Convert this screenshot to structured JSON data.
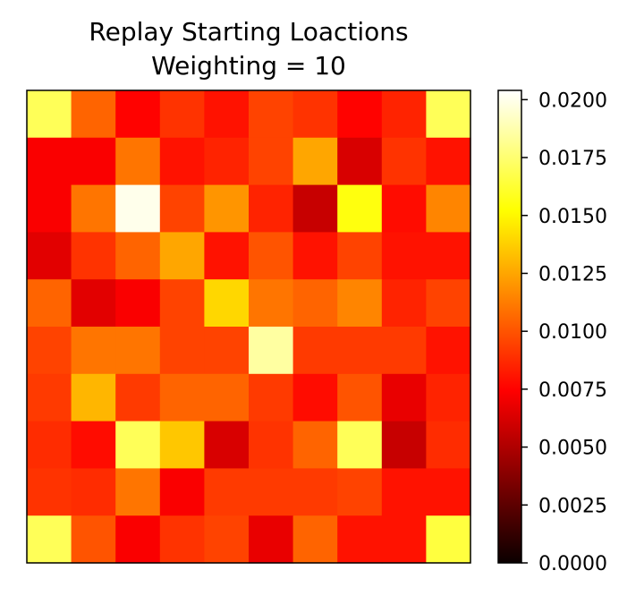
{
  "chart_data": {
    "type": "heatmap",
    "title": "Replay Starting Loactions\nWeighting = 10",
    "title_lines": [
      "Replay Starting Loactions",
      "Weighting = 10"
    ],
    "xlabel": "",
    "ylabel": "",
    "x_ticks_shown": false,
    "y_ticks_shown": false,
    "rows": 10,
    "cols": 10,
    "colormap": "hot",
    "vmin": 0.0,
    "vmax": 0.0204,
    "values": [
      [
        0.017,
        0.0105,
        0.0075,
        0.009,
        0.008,
        0.0095,
        0.009,
        0.0075,
        0.0085,
        0.017
      ],
      [
        0.007,
        0.007,
        0.011,
        0.008,
        0.0085,
        0.0095,
        0.0125,
        0.006,
        0.009,
        0.008
      ],
      [
        0.007,
        0.011,
        0.02,
        0.0095,
        0.012,
        0.0085,
        0.0055,
        0.0155,
        0.0078,
        0.0115
      ],
      [
        0.0063,
        0.009,
        0.0105,
        0.0125,
        0.008,
        0.01,
        0.008,
        0.0095,
        0.008,
        0.008
      ],
      [
        0.0105,
        0.0063,
        0.007,
        0.0095,
        0.014,
        0.011,
        0.0105,
        0.0115,
        0.0085,
        0.0095
      ],
      [
        0.0095,
        0.011,
        0.011,
        0.0095,
        0.0095,
        0.0185,
        0.0092,
        0.0092,
        0.0092,
        0.008
      ],
      [
        0.0092,
        0.013,
        0.0092,
        0.0105,
        0.0105,
        0.0092,
        0.0078,
        0.01,
        0.0065,
        0.0085
      ],
      [
        0.0088,
        0.0078,
        0.017,
        0.0135,
        0.006,
        0.009,
        0.0105,
        0.017,
        0.0055,
        0.0088
      ],
      [
        0.009,
        0.0088,
        0.011,
        0.007,
        0.0092,
        0.0092,
        0.0092,
        0.0095,
        0.008,
        0.008
      ],
      [
        0.017,
        0.01,
        0.007,
        0.009,
        0.0095,
        0.0065,
        0.0105,
        0.008,
        0.008,
        0.0165
      ]
    ],
    "colorbar": {
      "ticks": [
        0.0,
        0.0025,
        0.005,
        0.0075,
        0.01,
        0.0125,
        0.015,
        0.0175,
        0.02
      ],
      "tick_labels": [
        "0.0000",
        "0.0025",
        "0.0050",
        "0.0075",
        "0.0100",
        "0.0125",
        "0.0150",
        "0.0175",
        "0.0200"
      ]
    }
  }
}
